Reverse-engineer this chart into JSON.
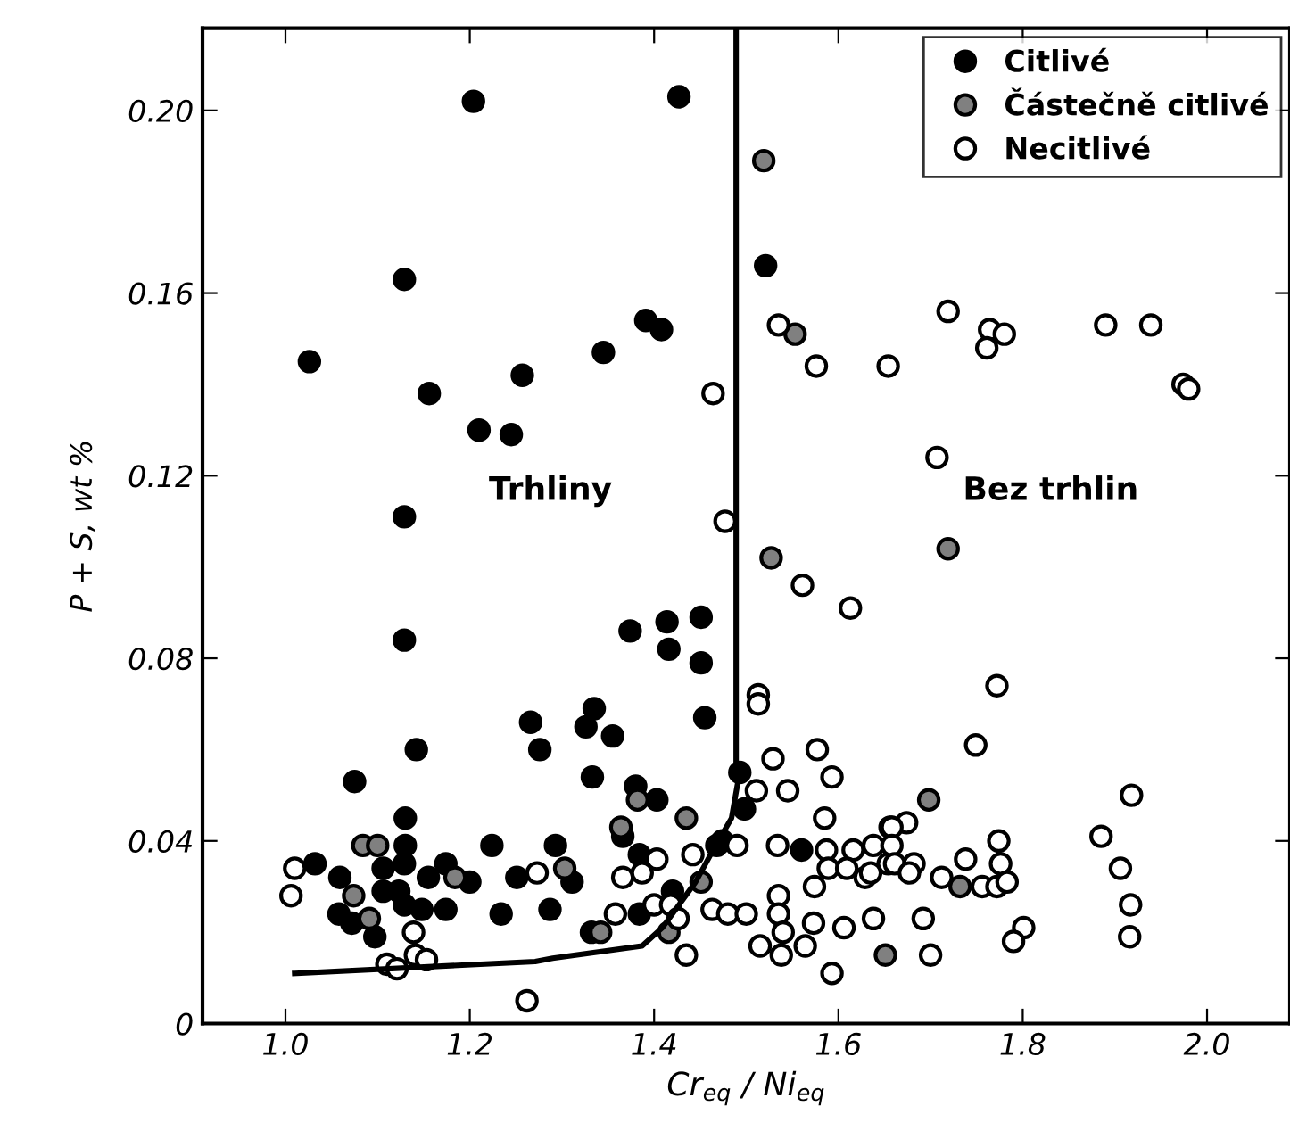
{
  "chart_data": {
    "type": "scatter",
    "xlabel": "Cr$_{eq}$ / Ni$_{eq}$",
    "ylabel": "P + S, wt %",
    "xlim": [
      0.91,
      2.09
    ],
    "ylim": [
      0,
      0.218
    ],
    "xticks": [
      {
        "value": 1.0,
        "label": "1.0"
      },
      {
        "value": 1.2,
        "label": "1.2"
      },
      {
        "value": 1.4,
        "label": "1.4"
      },
      {
        "value": 1.6,
        "label": "1.6"
      },
      {
        "value": 1.8,
        "label": "1.8"
      },
      {
        "value": 2.0,
        "label": "2.0"
      }
    ],
    "yticks": [
      0,
      {
        "value": 0.04,
        "label": "0.04"
      },
      {
        "value": 0.08,
        "label": "0.08"
      },
      {
        "value": 0.12,
        "label": "0.12"
      },
      {
        "value": 0.16,
        "label": "0.16"
      },
      {
        "value": 0.2,
        "label": "0.20"
      }
    ],
    "grid": false,
    "legend": "top right",
    "marker": "circle",
    "annotations": [
      "Trhliny",
      "Bez trhlin"
    ],
    "series": [
      {
        "name": "Citlivé",
        "color": "#000000",
        "x": [
          1.204,
          1.427,
          1.129,
          1.026,
          1.156,
          1.257,
          1.21,
          1.245,
          1.345,
          1.391,
          1.408,
          1.129,
          1.521,
          1.129,
          1.266,
          1.276,
          1.142,
          1.075,
          1.13,
          1.224,
          1.13,
          1.129,
          1.032,
          1.106,
          1.174,
          1.155,
          1.2,
          1.059,
          1.251,
          1.106,
          1.123,
          1.129,
          1.148,
          1.174,
          1.058,
          1.072,
          1.097,
          1.234,
          1.287,
          1.374,
          1.414,
          1.416,
          1.451,
          1.451,
          1.455,
          1.335,
          1.326,
          1.355,
          1.333,
          1.38,
          1.403,
          1.493,
          1.498,
          1.366,
          1.293,
          1.474,
          1.468,
          1.56,
          1.384,
          1.311,
          1.42,
          1.384,
          1.332
        ],
        "values": [
          0.202,
          0.203,
          0.163,
          0.145,
          0.138,
          0.142,
          0.13,
          0.129,
          0.147,
          0.154,
          0.152,
          0.111,
          0.166,
          0.084,
          0.066,
          0.06,
          0.06,
          0.053,
          0.045,
          0.039,
          0.039,
          0.035,
          0.035,
          0.034,
          0.035,
          0.032,
          0.031,
          0.032,
          0.032,
          0.029,
          0.029,
          0.026,
          0.025,
          0.025,
          0.024,
          0.022,
          0.019,
          0.024,
          0.025,
          0.086,
          0.088,
          0.082,
          0.089,
          0.079,
          0.067,
          0.069,
          0.065,
          0.063,
          0.054,
          0.052,
          0.049,
          0.055,
          0.047,
          0.041,
          0.039,
          0.04,
          0.039,
          0.038,
          0.037,
          0.031,
          0.029,
          0.024,
          0.02
        ]
      },
      {
        "name": "Částečně citlivé",
        "color": "#808080",
        "x": [
          1.519,
          1.553,
          1.719,
          1.527,
          1.084,
          1.1,
          1.184,
          1.074,
          1.091,
          1.382,
          1.435,
          1.364,
          1.303,
          1.451,
          1.342,
          1.416,
          1.651,
          1.698,
          1.732
        ],
        "values": [
          0.189,
          0.151,
          0.104,
          0.102,
          0.039,
          0.039,
          0.032,
          0.028,
          0.023,
          0.049,
          0.045,
          0.043,
          0.034,
          0.031,
          0.02,
          0.02,
          0.015,
          0.049,
          0.03
        ]
      },
      {
        "name": "Necitlivé",
        "color": "#ffffff",
        "x": [
          1.535,
          1.719,
          1.764,
          1.78,
          1.761,
          1.89,
          1.939,
          1.974,
          1.98,
          1.576,
          1.654,
          1.707,
          1.477,
          1.464,
          1.01,
          1.273,
          1.006,
          1.139,
          1.11,
          1.121,
          1.141,
          1.153,
          1.262,
          1.561,
          1.613,
          1.513,
          1.513,
          1.529,
          1.577,
          1.593,
          1.511,
          1.545,
          1.585,
          1.442,
          1.49,
          1.534,
          1.587,
          1.616,
          1.638,
          1.656,
          1.589,
          1.609,
          1.629,
          1.654,
          1.403,
          1.366,
          1.387,
          1.358,
          1.4,
          1.418,
          1.426,
          1.463,
          1.48,
          1.5,
          1.535,
          1.574,
          1.535,
          1.573,
          1.638,
          1.606,
          1.515,
          1.538,
          1.54,
          1.564,
          1.435,
          1.593,
          1.772,
          1.749,
          1.918,
          1.885,
          1.906,
          1.917,
          1.916,
          1.674,
          1.658,
          1.658,
          1.774,
          1.738,
          1.776,
          1.661,
          1.682,
          1.677,
          1.635,
          1.712,
          1.756,
          1.772,
          1.783,
          1.692,
          1.801,
          1.79,
          1.7
        ],
        "values": [
          0.153,
          0.156,
          0.152,
          0.151,
          0.148,
          0.153,
          0.153,
          0.14,
          0.139,
          0.144,
          0.144,
          0.124,
          0.11,
          0.138,
          0.034,
          0.033,
          0.028,
          0.02,
          0.013,
          0.012,
          0.015,
          0.014,
          0.005,
          0.096,
          0.091,
          0.072,
          0.07,
          0.058,
          0.06,
          0.054,
          0.051,
          0.051,
          0.045,
          0.037,
          0.039,
          0.039,
          0.038,
          0.038,
          0.039,
          0.043,
          0.034,
          0.034,
          0.032,
          0.035,
          0.036,
          0.032,
          0.033,
          0.024,
          0.026,
          0.026,
          0.023,
          0.025,
          0.024,
          0.024,
          0.028,
          0.03,
          0.024,
          0.022,
          0.023,
          0.021,
          0.017,
          0.015,
          0.02,
          0.017,
          0.015,
          0.011,
          0.074,
          0.061,
          0.05,
          0.041,
          0.034,
          0.026,
          0.019,
          0.044,
          0.043,
          0.039,
          0.04,
          0.036,
          0.035,
          0.035,
          0.035,
          0.033,
          0.033,
          0.032,
          0.03,
          0.03,
          0.031,
          0.023,
          0.021,
          0.018,
          0.015
        ]
      },
      {
        "type": "line",
        "color": "#000000",
        "marker": "none",
        "line_style": "solid",
        "x": [
          1.01,
          1.271,
          1.29,
          1.387,
          1.409,
          1.445,
          1.464,
          1.484,
          1.491,
          1.489,
          1.489
        ],
        "values": [
          0.011,
          0.0136,
          0.0143,
          0.017,
          0.021,
          0.031,
          0.038,
          0.045,
          0.053,
          0.055,
          0.218
        ]
      }
    ]
  }
}
